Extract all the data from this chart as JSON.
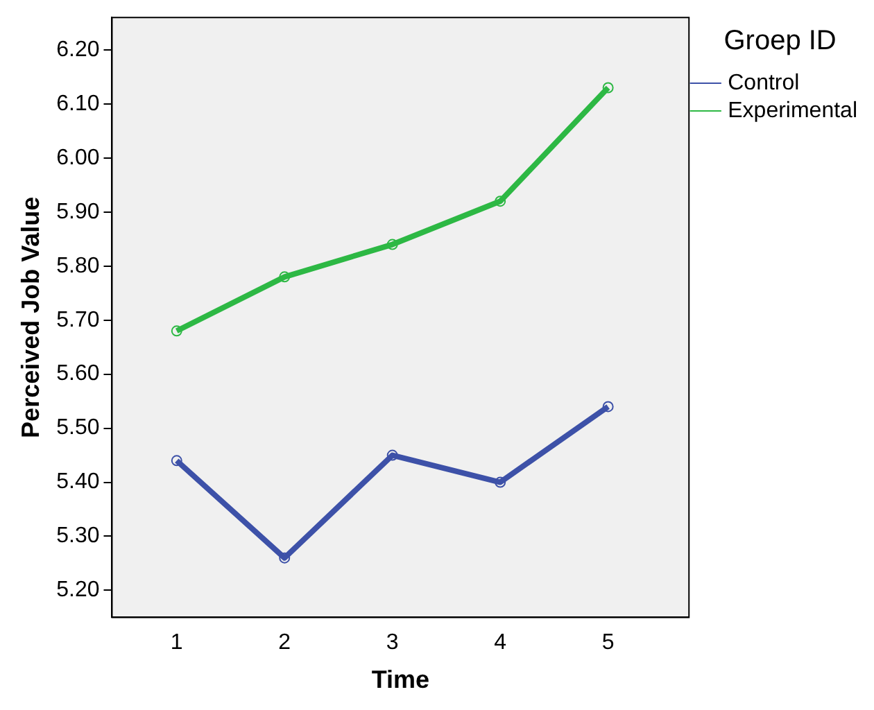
{
  "chart_data": {
    "type": "line",
    "xlabel": "Time",
    "ylabel": "Perceived Job Value",
    "legend_title": "Groep ID",
    "x": [
      1,
      2,
      3,
      4,
      5
    ],
    "series": [
      {
        "name": "Control",
        "color": "#3d51a8",
        "values": [
          5.44,
          5.26,
          5.45,
          5.4,
          5.54
        ]
      },
      {
        "name": "Experimental",
        "color": "#2db844",
        "values": [
          5.68,
          5.78,
          5.84,
          5.92,
          6.13
        ]
      }
    ],
    "xlim": [
      0.4,
      5.75
    ],
    "xticks": [
      1,
      2,
      3,
      4,
      5
    ],
    "ylim": [
      5.15,
      6.26
    ],
    "yticks": [
      {
        "value": 5.2,
        "label": "5.20"
      },
      {
        "value": 5.3,
        "label": "5.30"
      },
      {
        "value": 5.4,
        "label": "5.40"
      },
      {
        "value": 5.5,
        "label": "5.50"
      },
      {
        "value": 5.6,
        "label": "5.60"
      },
      {
        "value": 5.7,
        "label": "5.70"
      },
      {
        "value": 5.8,
        "label": "5.80"
      },
      {
        "value": 5.9,
        "label": "5.90"
      },
      {
        "value": 6.0,
        "label": "6.00"
      },
      {
        "value": 6.1,
        "label": "6.10"
      },
      {
        "value": 6.2,
        "label": "6.20"
      }
    ],
    "grid": false,
    "legend": "top right",
    "marker": "circle",
    "line_style": "solid"
  }
}
